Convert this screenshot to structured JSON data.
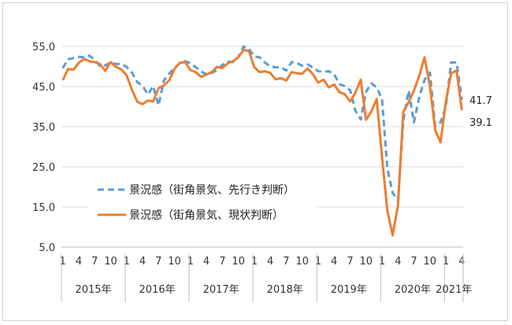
{
  "chart_data": {
    "type": "line",
    "ylim": [
      5,
      55
    ],
    "y_ticks": [
      "5.0",
      "15.0",
      "25.0",
      "35.0",
      "45.0",
      "55.0"
    ],
    "grid": true,
    "legend_position": "lower-left",
    "x_month_ticks": [
      "1",
      "4",
      "7",
      "10",
      "1",
      "4",
      "7",
      "10",
      "1",
      "4",
      "7",
      "10",
      "1",
      "4",
      "7",
      "10",
      "1",
      "4",
      "7",
      "10",
      "1",
      "4",
      "7",
      "10",
      "1",
      "4"
    ],
    "years": [
      {
        "label": "2015年",
        "start": 0,
        "end": 11
      },
      {
        "label": "2016年",
        "start": 12,
        "end": 23
      },
      {
        "label": "2017年",
        "start": 24,
        "end": 35
      },
      {
        "label": "2018年",
        "start": 36,
        "end": 47
      },
      {
        "label": "2019年",
        "start": 48,
        "end": 59
      },
      {
        "label": "2020年",
        "start": 60,
        "end": 71
      },
      {
        "label": "2021年",
        "start": 72,
        "end": 75
      }
    ],
    "series": [
      {
        "name": "景況感（街角景気、先行き判断）",
        "color": "#5b9bd5",
        "dash": true,
        "values": [
          49.6,
          51.8,
          52.1,
          52.4,
          52.3,
          52.7,
          51.7,
          50.1,
          50.3,
          51.0,
          50.6,
          50.6,
          49.9,
          48.5,
          46.1,
          45.2,
          43.0,
          45.1,
          40.3,
          46.5,
          48.2,
          49.6,
          50.8,
          51.3,
          50.8,
          49.8,
          48.7,
          48.1,
          48.4,
          49.1,
          50.4,
          51.2,
          51.1,
          52.4,
          55.0,
          54.4,
          52.5,
          52.3,
          51.0,
          50.0,
          49.8,
          49.8,
          49.0,
          51.1,
          50.9,
          50.2,
          50.5,
          49.8,
          48.8,
          48.7,
          48.8,
          48.1,
          45.6,
          45.1,
          44.1,
          39.0,
          36.8,
          43.7,
          45.8,
          44.8,
          41.8,
          24.6,
          18.5,
          16.6,
          36.5,
          44.0,
          36.1,
          42.4,
          46.7,
          48.5,
          35.1,
          36.1,
          39.9,
          51.0,
          51.0,
          41.7
        ]
      },
      {
        "name": "景況感（街角景気、現状判断）",
        "color": "#ed7d31",
        "dash": false,
        "values": [
          46.6,
          49.4,
          49.2,
          50.9,
          51.9,
          51.3,
          51.1,
          50.6,
          48.9,
          51.1,
          49.9,
          49.3,
          47.8,
          44.2,
          41.2,
          40.6,
          41.5,
          41.3,
          44.6,
          45.3,
          46.5,
          49.4,
          50.9,
          51.1,
          49.1,
          48.6,
          47.4,
          48.0,
          48.6,
          49.9,
          49.6,
          50.8,
          51.3,
          52.3,
          54.2,
          53.8,
          49.8,
          48.6,
          48.8,
          48.4,
          46.8,
          47.1,
          46.5,
          48.6,
          48.3,
          48.2,
          49.5,
          48.1,
          46.0,
          46.7,
          44.8,
          45.5,
          43.6,
          43.1,
          41.3,
          43.5,
          46.7,
          36.7,
          38.8,
          41.9,
          27.4,
          14.2,
          7.9,
          15.5,
          38.8,
          41.1,
          44.0,
          47.7,
          52.3,
          45.1,
          34.1,
          31.1,
          41.3,
          48.3,
          49.0,
          39.1
        ]
      }
    ],
    "end_labels": [
      {
        "series": 0,
        "text": "41.7"
      },
      {
        "series": 1,
        "text": "39.1"
      }
    ]
  }
}
